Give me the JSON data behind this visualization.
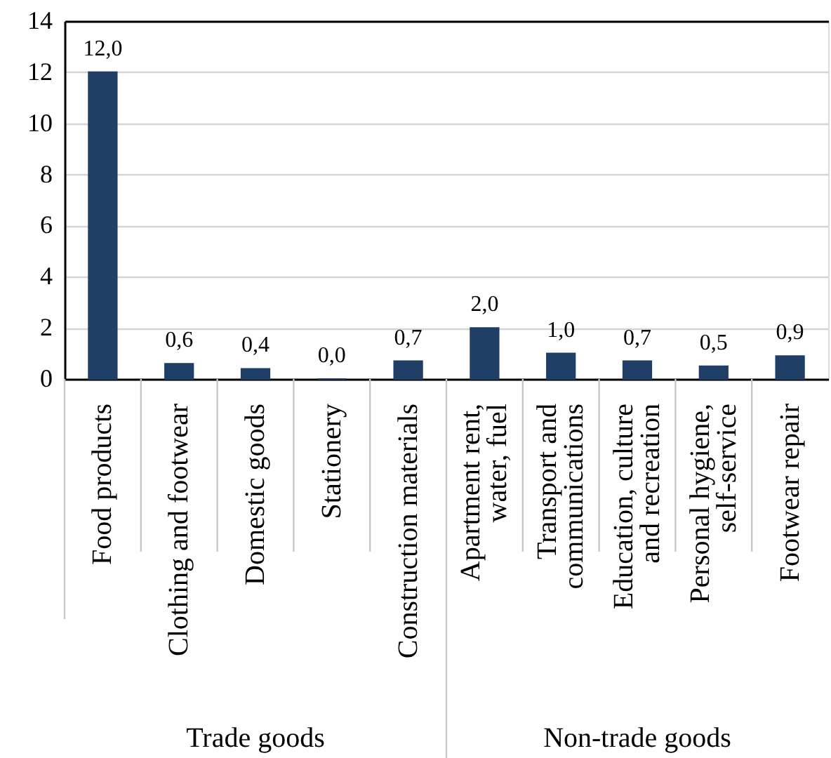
{
  "chart_data": {
    "type": "bar",
    "categories": [
      "Food products",
      "Clothing and footwear",
      "Domestic goods",
      "Stationery",
      "Construction materials",
      "Apartment rent, water, fuel",
      "Transport and communications",
      "Education, culture and recreation",
      "Personal hygiene, self-service",
      "Footwear repair"
    ],
    "values": [
      12.0,
      0.6,
      0.4,
      0.0,
      0.7,
      2.0,
      1.0,
      0.7,
      0.5,
      0.9
    ],
    "value_labels": [
      "12,0",
      "0,6",
      "0,4",
      "0,0",
      "0,7",
      "2,0",
      "1,0",
      "0,7",
      "0,5",
      "0,9"
    ],
    "color": "#203f66",
    "ylim": [
      0,
      14
    ],
    "yticks": [
      0,
      2,
      4,
      6,
      8,
      10,
      12,
      14
    ],
    "grid": "y",
    "annotations": [
      "Trade goods",
      "Non-trade goods"
    ]
  }
}
